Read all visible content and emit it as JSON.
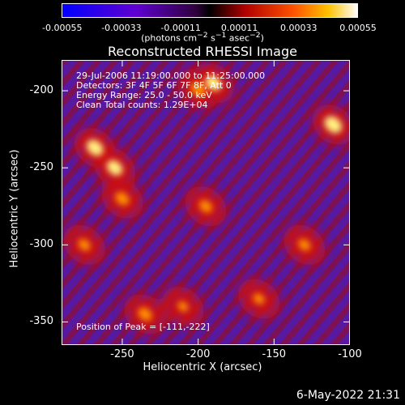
{
  "chart_data": {
    "type": "heatmap",
    "title": "Reconstructed RHESSI Image",
    "xlabel": "Heliocentric X (arcsec)",
    "ylabel": "Heliocentric Y (arcsec)",
    "xlim": [
      -290,
      -100
    ],
    "ylim": [
      -365,
      -180
    ],
    "xticks": [
      "-250",
      "-200",
      "-150",
      "-100"
    ],
    "xtick_values": [
      -250,
      -200,
      -150,
      -100
    ],
    "yticks": [
      "-200",
      "-250",
      "-300",
      "-350"
    ],
    "ytick_values": [
      -200,
      -250,
      -300,
      -350
    ],
    "colorbar": {
      "ticks": [
        "-0.00055",
        "-0.00033",
        "-0.00011",
        "0.00011",
        "0.00033",
        "0.00055"
      ],
      "tick_values": [
        -0.00055,
        -0.00033,
        -0.00011,
        0.00011,
        0.00033,
        0.00055
      ],
      "range": [
        -0.00055,
        0.00055
      ]
    },
    "annotations": {
      "time": "29-Jul-2006 11:19:00.000 to 11:25:00.000",
      "detectors": "Detectors: 3F 4F 5F 6F 7F 8F, Att 0",
      "energy": "Energy Range: 25.0 - 50.0 keV",
      "clean": "Clean    Total counts: 1.29E+04",
      "peak": "Position of Peak = [-111,-222]"
    },
    "hot_spots": [
      {
        "x": -268,
        "y": -237,
        "level": 0.95
      },
      {
        "x": -255,
        "y": -250,
        "level": 0.9
      },
      {
        "x": -200,
        "y": -199,
        "level": 0.85
      },
      {
        "x": -190,
        "y": -195,
        "level": 0.9
      },
      {
        "x": -111,
        "y": -222,
        "level": 1.0
      },
      {
        "x": -195,
        "y": -275,
        "level": 0.75
      },
      {
        "x": -250,
        "y": -270,
        "level": 0.8
      },
      {
        "x": -235,
        "y": -345,
        "level": 0.8
      },
      {
        "x": -160,
        "y": -335,
        "level": 0.65
      },
      {
        "x": -130,
        "y": -300,
        "level": 0.7
      },
      {
        "x": -275,
        "y": -300,
        "level": 0.7
      },
      {
        "x": -210,
        "y": -340,
        "level": 0.6
      }
    ]
  },
  "colors": {
    "low": "#0000ff",
    "mid_low": "#8000c0",
    "zero": "#000000",
    "mid": "#c00000",
    "high": "#ffa000",
    "max": "#ffffff"
  },
  "footer": {
    "date": "6-May-2022 21:31"
  }
}
